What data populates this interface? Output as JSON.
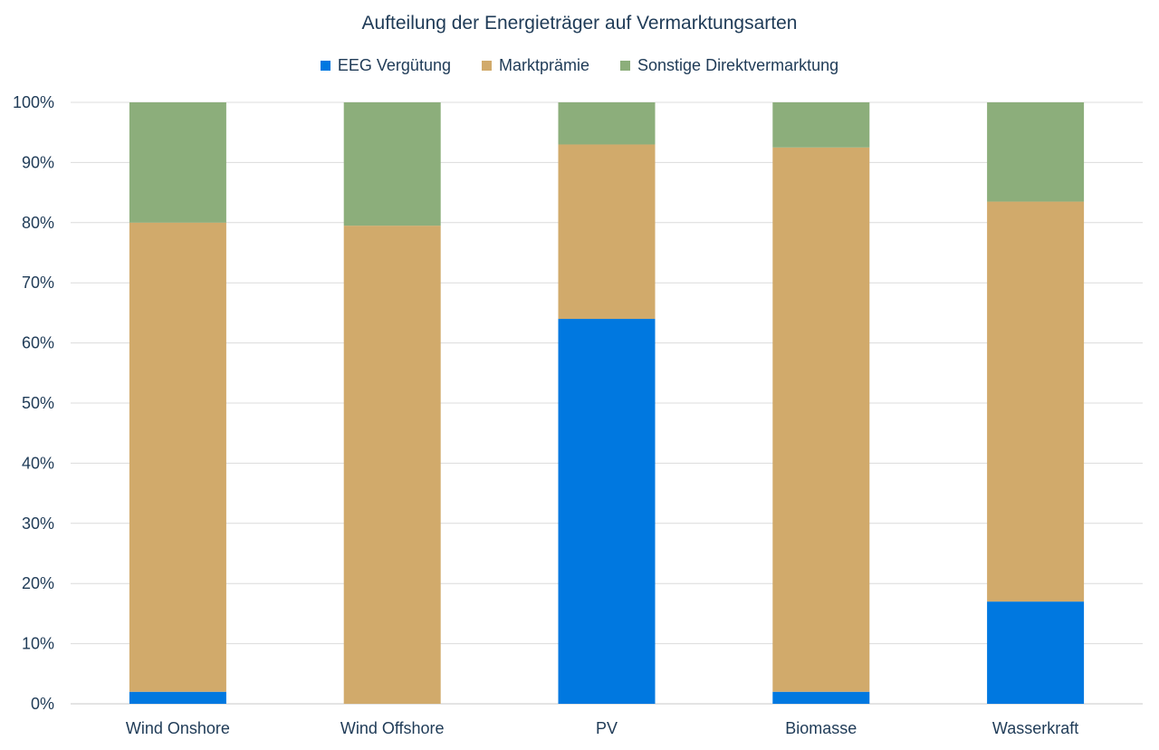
{
  "chart_data": {
    "type": "bar",
    "stacked": true,
    "title": "Aufteilung der Energieträger auf Vermarktungsarten",
    "categories": [
      "Wind Onshore",
      "Wind Offshore",
      "PV",
      "Biomasse",
      "Wasserkraft"
    ],
    "series": [
      {
        "name": "EEG Vergütung",
        "color": "#0078e0",
        "values": [
          2,
          0,
          64,
          2,
          17
        ]
      },
      {
        "name": "Marktprämie",
        "color": "#d1aa6b",
        "values": [
          78,
          79.5,
          29,
          90.5,
          66.5
        ]
      },
      {
        "name": "Sonstige Direktvermarktung",
        "color": "#8cae7b",
        "values": [
          20,
          20.5,
          7,
          7.5,
          16.5
        ]
      }
    ],
    "ylim": [
      0,
      100
    ],
    "yticks": [
      "0%",
      "10%",
      "20%",
      "30%",
      "40%",
      "50%",
      "60%",
      "70%",
      "80%",
      "90%",
      "100%"
    ],
    "grid": true,
    "legend_position": "top"
  }
}
